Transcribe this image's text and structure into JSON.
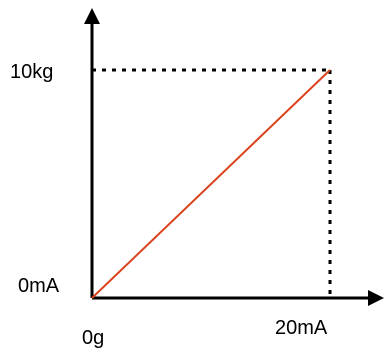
{
  "chart_data": {
    "type": "line",
    "x": [
      0,
      20
    ],
    "y": [
      0,
      10
    ],
    "xlim": [
      0,
      20
    ],
    "ylim": [
      0,
      10
    ],
    "x_ticks": [
      "0g",
      "20mA"
    ],
    "y_ticks": [
      "0mA",
      "10kg"
    ],
    "line_color": "#d9421c",
    "axis_color": "#000000",
    "guides": "dashed",
    "grid": false,
    "title": "",
    "xlabel": "",
    "ylabel": ""
  }
}
